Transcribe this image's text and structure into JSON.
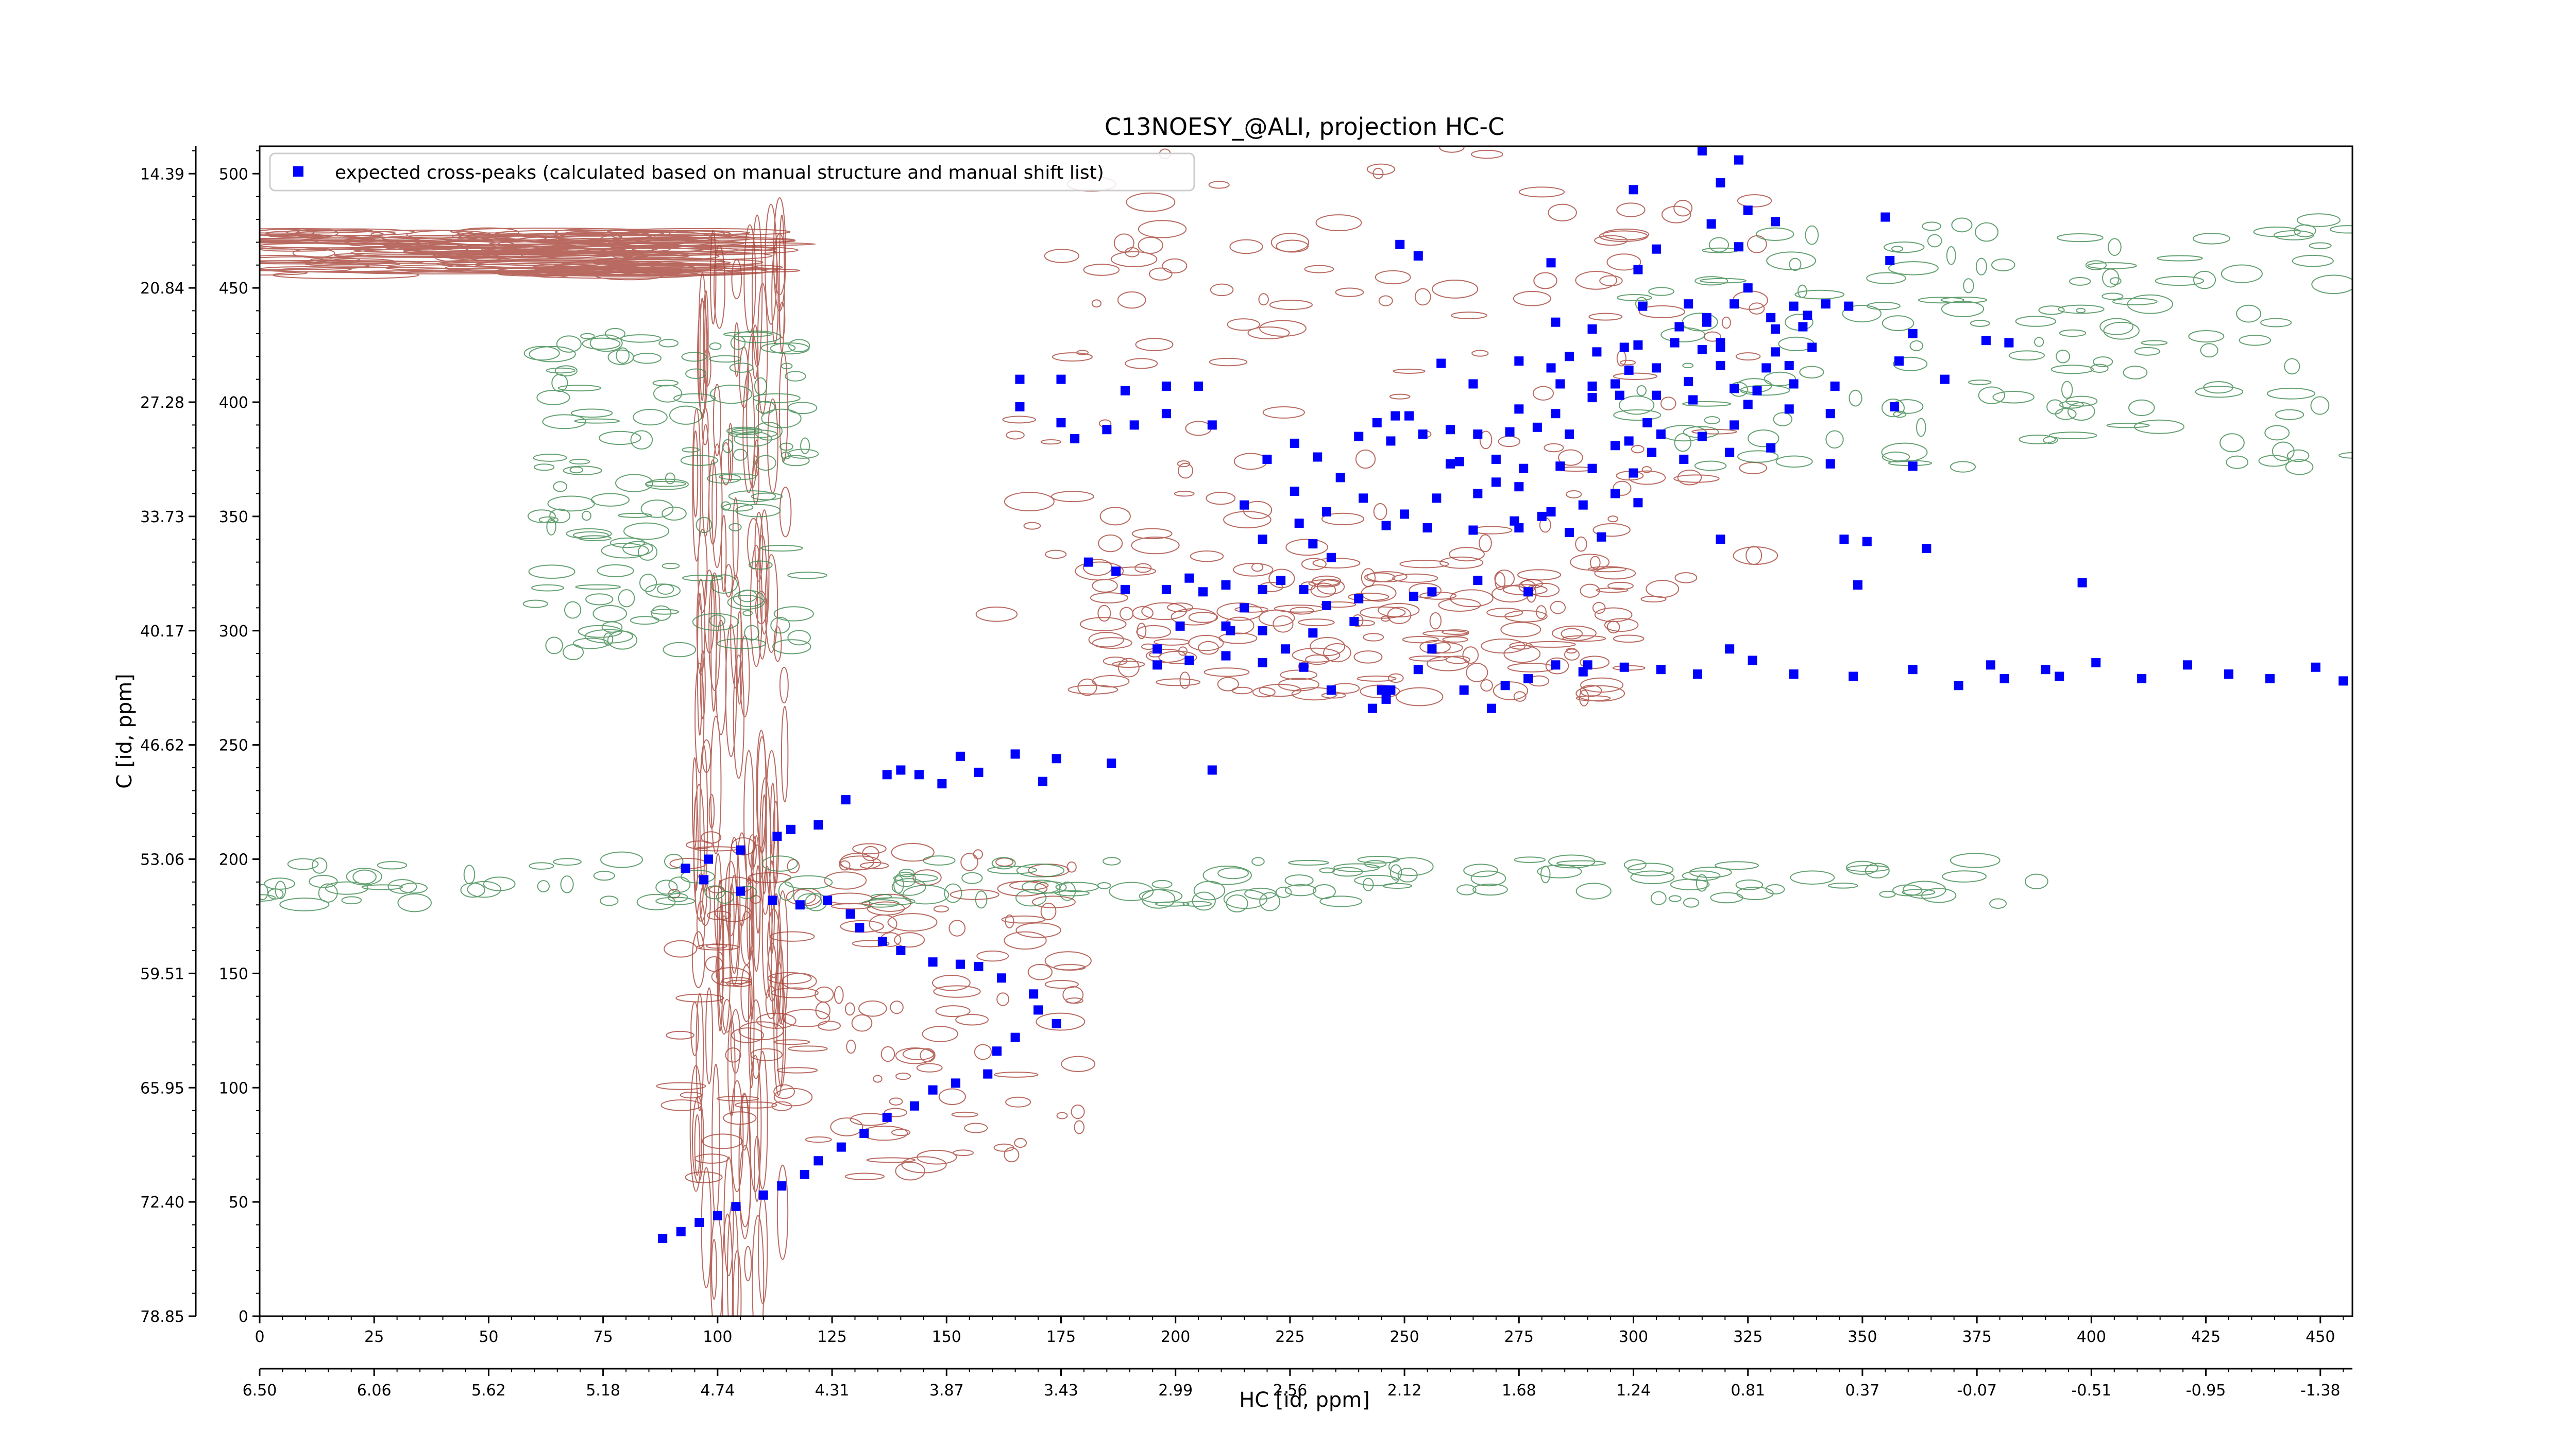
{
  "chart_data": {
    "type": "scatter",
    "title": "C13NOESY_@ALI, projection HC-C",
    "xlabel": "HC [id, ppm]",
    "ylabel": "C [id, ppm]",
    "xlim": [
      0,
      457
    ],
    "ylim": [
      0,
      512
    ],
    "x_index_ticks": [
      "0",
      "25",
      "50",
      "75",
      "100",
      "125",
      "150",
      "175",
      "200",
      "225",
      "250",
      "275",
      "300",
      "325",
      "350",
      "375",
      "400",
      "425",
      "450"
    ],
    "x_ppm_ticks": [
      "6.50",
      "6.06",
      "5.62",
      "5.18",
      "4.74",
      "4.31",
      "3.87",
      "3.43",
      "2.99",
      "2.56",
      "2.12",
      "1.68",
      "1.24",
      "0.81",
      "0.37",
      "-0.07",
      "-0.51",
      "-0.95",
      "-1.38"
    ],
    "y_index_ticks": [
      "0",
      "50",
      "100",
      "150",
      "200",
      "250",
      "300",
      "350",
      "400",
      "450",
      "500"
    ],
    "y_ppm_ticks": [
      "78.85",
      "72.40",
      "65.95",
      "59.51",
      "53.06",
      "46.62",
      "40.17",
      "33.73",
      "27.28",
      "20.84",
      "14.39"
    ],
    "legend": {
      "position": "top-left",
      "label": "expected cross-peaks (calculated based on manual structure and manual shift list)"
    },
    "colors": {
      "positive_contours": "#a8453a",
      "negative_contours": "#3e8a4f",
      "peaks": "#0000ff"
    },
    "contour_regions": [
      {
        "sign": "pos",
        "x": [
          0,
          100
        ],
        "y": [
          455,
          475
        ],
        "note": "horizontal streaks"
      },
      {
        "sign": "pos",
        "x": [
          95,
          115
        ],
        "y": [
          0,
          470
        ],
        "note": "vertical streaks"
      },
      {
        "sign": "pos",
        "x": [
          160,
          330
        ],
        "y": [
          300,
          512
        ]
      },
      {
        "sign": "pos",
        "x": [
          90,
          180
        ],
        "y": [
          60,
          210
        ]
      },
      {
        "sign": "pos",
        "x": [
          180,
          300
        ],
        "y": [
          270,
          330
        ]
      },
      {
        "sign": "neg",
        "x": [
          60,
          120
        ],
        "y": [
          290,
          430
        ]
      },
      {
        "sign": "neg",
        "x": [
          300,
          460
        ],
        "y": [
          370,
          480
        ]
      },
      {
        "sign": "neg",
        "x": [
          0,
          390
        ],
        "y": [
          180,
          200
        ]
      }
    ],
    "series": [
      {
        "name": "expected cross-peaks (calculated based on manual structure and manual shift list)",
        "points": [
          [
            315,
            510
          ],
          [
            323,
            506
          ],
          [
            319,
            496
          ],
          [
            300,
            493
          ],
          [
            325,
            484
          ],
          [
            317,
            478
          ],
          [
            331,
            479
          ],
          [
            355,
            481
          ],
          [
            249,
            469
          ],
          [
            305,
            467
          ],
          [
            323,
            468
          ],
          [
            282,
            461
          ],
          [
            301,
            458
          ],
          [
            253,
            464
          ],
          [
            356,
            462
          ],
          [
            325,
            450
          ],
          [
            312,
            443
          ],
          [
            322,
            443
          ],
          [
            335,
            442
          ],
          [
            342,
            443
          ],
          [
            347,
            442
          ],
          [
            316,
            437
          ],
          [
            302,
            442
          ],
          [
            283,
            435
          ],
          [
            291,
            432
          ],
          [
            310,
            433
          ],
          [
            330,
            437
          ],
          [
            338,
            438
          ],
          [
            316,
            435
          ],
          [
            331,
            432
          ],
          [
            361,
            430
          ],
          [
            319,
            424
          ],
          [
            337,
            433
          ],
          [
            286,
            420
          ],
          [
            292,
            422
          ],
          [
            298,
            424
          ],
          [
            301,
            425
          ],
          [
            309,
            426
          ],
          [
            315,
            423
          ],
          [
            319,
            426
          ],
          [
            339,
            424
          ],
          [
            377,
            427
          ],
          [
            382,
            426
          ],
          [
            358,
            418
          ],
          [
            331,
            422
          ],
          [
            275,
            418
          ],
          [
            282,
            415
          ],
          [
            299,
            414
          ],
          [
            305,
            415
          ],
          [
            319,
            416
          ],
          [
            329,
            415
          ],
          [
            334,
            416
          ],
          [
            335,
            408
          ],
          [
            344,
            407
          ],
          [
            368,
            410
          ],
          [
            284,
            408
          ],
          [
            291,
            407
          ],
          [
            296,
            408
          ],
          [
            312,
            409
          ],
          [
            322,
            406
          ],
          [
            327,
            405
          ],
          [
            166,
            410
          ],
          [
            175,
            410
          ],
          [
            189,
            405
          ],
          [
            198,
            407
          ],
          [
            205,
            407
          ],
          [
            258,
            417
          ],
          [
            265,
            408
          ],
          [
            275,
            397
          ],
          [
            283,
            395
          ],
          [
            291,
            402
          ],
          [
            297,
            403
          ],
          [
            305,
            403
          ],
          [
            303,
            391
          ],
          [
            313,
            401
          ],
          [
            325,
            399
          ],
          [
            334,
            397
          ],
          [
            343,
            395
          ],
          [
            357,
            398
          ],
          [
            322,
            390
          ],
          [
            315,
            385
          ],
          [
            306,
            386
          ],
          [
            299,
            383
          ],
          [
            296,
            381
          ],
          [
            286,
            386
          ],
          [
            279,
            389
          ],
          [
            273,
            387
          ],
          [
            266,
            386
          ],
          [
            260,
            388
          ],
          [
            251,
            394
          ],
          [
            247,
            383
          ],
          [
            244,
            391
          ],
          [
            240,
            385
          ],
          [
            260,
            373
          ],
          [
            270,
            375
          ],
          [
            276,
            371
          ],
          [
            284,
            372
          ],
          [
            291,
            371
          ],
          [
            300,
            369
          ],
          [
            304,
            378
          ],
          [
            311,
            375
          ],
          [
            321,
            378
          ],
          [
            330,
            380
          ],
          [
            343,
            373
          ],
          [
            361,
            372
          ],
          [
            231,
            376
          ],
          [
            236,
            367
          ],
          [
            226,
            361
          ],
          [
            233,
            352
          ],
          [
            241,
            358
          ],
          [
            250,
            351
          ],
          [
            257,
            358
          ],
          [
            266,
            360
          ],
          [
            270,
            365
          ],
          [
            274,
            348
          ],
          [
            282,
            352
          ],
          [
            289,
            355
          ],
          [
            296,
            360
          ],
          [
            301,
            356
          ],
          [
            275,
            363
          ],
          [
            262,
            374
          ],
          [
            254,
            386
          ],
          [
            248,
            394
          ],
          [
            166,
            398
          ],
          [
            175,
            391
          ],
          [
            178,
            384
          ],
          [
            185,
            388
          ],
          [
            191,
            390
          ],
          [
            198,
            395
          ],
          [
            208,
            390
          ],
          [
            226,
            382
          ],
          [
            220,
            375
          ],
          [
            219,
            340
          ],
          [
            227,
            347
          ],
          [
            230,
            338
          ],
          [
            234,
            332
          ],
          [
            246,
            346
          ],
          [
            255,
            345
          ],
          [
            265,
            344
          ],
          [
            275,
            345
          ],
          [
            280,
            350
          ],
          [
            286,
            343
          ],
          [
            293,
            341
          ],
          [
            319,
            340
          ],
          [
            346,
            340
          ],
          [
            351,
            339
          ],
          [
            364,
            336
          ],
          [
            215,
            355
          ],
          [
            181,
            330
          ],
          [
            187,
            326
          ],
          [
            189,
            318
          ],
          [
            198,
            318
          ],
          [
            203,
            323
          ],
          [
            206,
            317
          ],
          [
            211,
            320
          ],
          [
            215,
            310
          ],
          [
            219,
            318
          ],
          [
            223,
            322
          ],
          [
            219,
            300
          ],
          [
            228,
            318
          ],
          [
            233,
            311
          ],
          [
            239,
            304
          ],
          [
            230,
            299
          ],
          [
            212,
            300
          ],
          [
            201,
            302
          ],
          [
            196,
            292
          ],
          [
            196,
            285
          ],
          [
            203,
            287
          ],
          [
            211,
            289
          ],
          [
            219,
            286
          ],
          [
            224,
            292
          ],
          [
            228,
            284
          ],
          [
            234,
            274
          ],
          [
            245,
            274
          ],
          [
            256,
            292
          ],
          [
            290,
            285
          ],
          [
            298,
            284
          ],
          [
            306,
            283
          ],
          [
            314,
            281
          ],
          [
            321,
            292
          ],
          [
            326,
            287
          ],
          [
            335,
            281
          ],
          [
            348,
            280
          ],
          [
            361,
            283
          ],
          [
            371,
            276
          ],
          [
            378,
            285
          ],
          [
            381,
            279
          ],
          [
            390,
            283
          ],
          [
            393,
            280
          ],
          [
            401,
            286
          ],
          [
            411,
            279
          ],
          [
            421,
            285
          ],
          [
            430,
            281
          ],
          [
            439,
            279
          ],
          [
            449,
            284
          ],
          [
            455,
            278
          ],
          [
            398,
            321
          ],
          [
            349,
            320
          ],
          [
            277,
            317
          ],
          [
            266,
            322
          ],
          [
            256,
            317
          ],
          [
            252,
            315
          ],
          [
            240,
            314
          ],
          [
            211,
            302
          ],
          [
            283,
            285
          ],
          [
            289,
            282
          ],
          [
            277,
            279
          ],
          [
            272,
            276
          ],
          [
            269,
            266
          ],
          [
            263,
            274
          ],
          [
            253,
            283
          ],
          [
            247,
            274
          ],
          [
            246,
            270
          ],
          [
            243,
            266
          ],
          [
            208,
            239
          ],
          [
            186,
            242
          ],
          [
            174,
            244
          ],
          [
            165,
            246
          ],
          [
            153,
            245
          ],
          [
            140,
            239
          ],
          [
            171,
            234
          ],
          [
            157,
            238
          ],
          [
            149,
            233
          ],
          [
            144,
            237
          ],
          [
            137,
            237
          ],
          [
            128,
            226
          ],
          [
            122,
            215
          ],
          [
            116,
            213
          ],
          [
            113,
            210
          ],
          [
            105,
            204
          ],
          [
            98,
            200
          ],
          [
            93,
            196
          ],
          [
            97,
            191
          ],
          [
            105,
            186
          ],
          [
            112,
            182
          ],
          [
            118,
            180
          ],
          [
            124,
            182
          ],
          [
            129,
            176
          ],
          [
            131,
            170
          ],
          [
            136,
            164
          ],
          [
            140,
            160
          ],
          [
            147,
            155
          ],
          [
            153,
            154
          ],
          [
            157,
            153
          ],
          [
            162,
            148
          ],
          [
            169,
            141
          ],
          [
            170,
            134
          ],
          [
            174,
            128
          ],
          [
            165,
            122
          ],
          [
            161,
            116
          ],
          [
            159,
            106
          ],
          [
            152,
            102
          ],
          [
            147,
            99
          ],
          [
            143,
            92
          ],
          [
            137,
            87
          ],
          [
            132,
            80
          ],
          [
            127,
            74
          ],
          [
            122,
            68
          ],
          [
            119,
            62
          ],
          [
            114,
            57
          ],
          [
            110,
            53
          ],
          [
            104,
            48
          ],
          [
            100,
            44
          ],
          [
            96,
            41
          ],
          [
            92,
            37
          ],
          [
            88,
            34
          ]
        ]
      }
    ]
  }
}
